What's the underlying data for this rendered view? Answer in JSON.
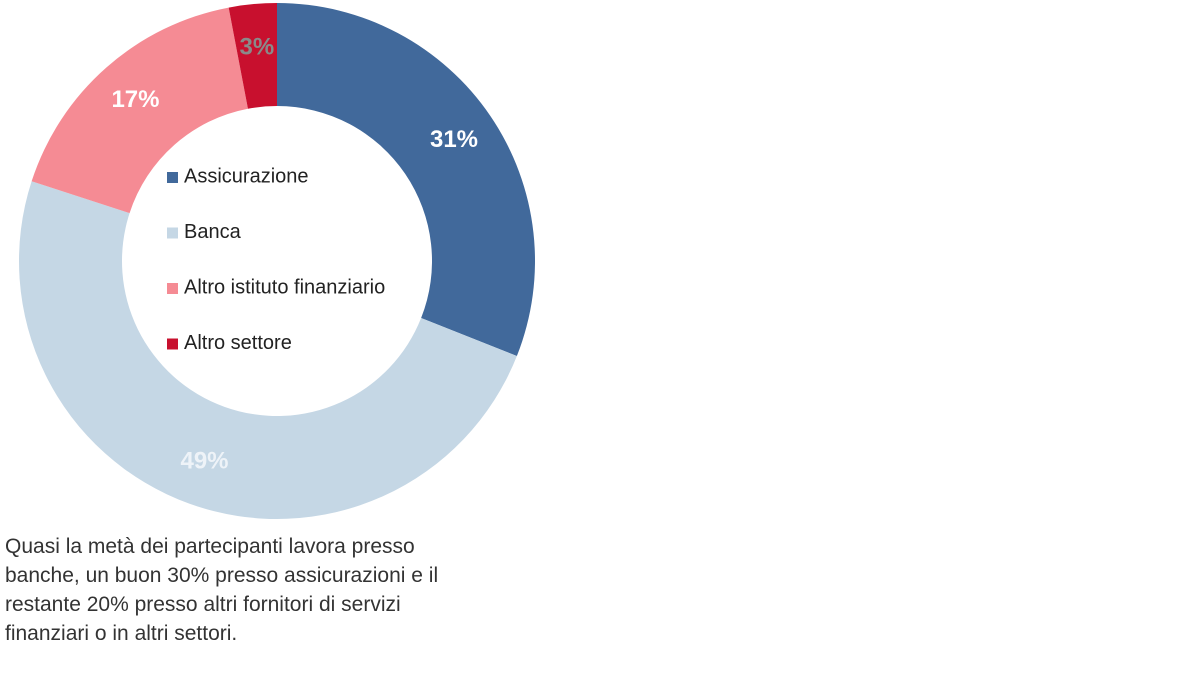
{
  "chart_data": {
    "type": "donut",
    "categories": [
      "Assicurazione",
      "Banca",
      "Altro istituto finanziario",
      "Altro settore"
    ],
    "values": [
      31,
      49,
      17,
      3
    ],
    "value_labels": [
      "31%",
      "49%",
      "17%",
      "3%"
    ],
    "colors": [
      "#41699b",
      "#c5d7e5",
      "#f58b94",
      "#c8102e"
    ],
    "annotation": "Quasi la metà dei partecipanti lavora presso banche, un buon 30% presso assicurazioni e il restante 20% presso altri fornitori di servizi finanziari o in altri settori."
  }
}
